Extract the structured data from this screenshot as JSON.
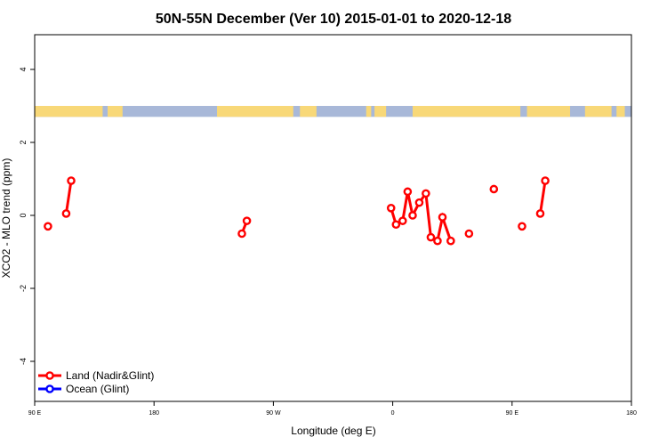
{
  "chart_data": {
    "type": "line",
    "title": "50N-55N December (Ver 10)   2015-01-01 to 2020-12-18",
    "xlabel": "Longitude (deg E)",
    "ylabel": "XCO2 - MLO trend (ppm)",
    "xlim": [
      90,
      450
    ],
    "ylim": [
      -5,
      5
    ],
    "x_ticks": [
      {
        "value": 90,
        "label": "90 E"
      },
      {
        "value": 162,
        "label": "180"
      },
      {
        "value": 234,
        "label": "90 W"
      },
      {
        "value": 306,
        "label": "0"
      },
      {
        "value": 378,
        "label": "90 E"
      },
      {
        "value": 450,
        "label": "180"
      }
    ],
    "y_ticks": [
      {
        "value": -4,
        "label": "-4"
      },
      {
        "value": -2,
        "label": "-2"
      },
      {
        "value": 0,
        "label": "0"
      },
      {
        "value": 2,
        "label": "2"
      },
      {
        "value": 4,
        "label": "4"
      }
    ],
    "grid": false,
    "legend_position": "bottom-left",
    "land_ocean_strip": {
      "y_range": [
        2.7,
        3.0
      ],
      "land_color": "#f8d878",
      "ocean_color": "#a8b8d8",
      "land_ranges": [
        [
          90,
          131
        ],
        [
          134,
          143
        ],
        [
          200,
          246
        ],
        [
          250,
          260
        ],
        [
          290,
          293
        ],
        [
          295,
          302
        ],
        [
          318,
          383
        ],
        [
          387,
          413
        ],
        [
          422,
          438
        ],
        [
          441,
          446
        ]
      ]
    },
    "series": [
      {
        "name": "Land (Nadir&Glint)",
        "color": "#ff0000",
        "segments": [
          [
            {
              "x": 98,
              "y": -0.3
            }
          ],
          [
            {
              "x": 109,
              "y": 0.05
            },
            {
              "x": 112,
              "y": 0.95
            }
          ],
          [
            {
              "x": 215,
              "y": -0.5
            },
            {
              "x": 218,
              "y": -0.15
            }
          ],
          [
            {
              "x": 305,
              "y": 0.2
            },
            {
              "x": 308,
              "y": -0.25
            },
            {
              "x": 312,
              "y": -0.15
            },
            {
              "x": 315,
              "y": 0.65
            },
            {
              "x": 318,
              "y": 0.0
            },
            {
              "x": 322,
              "y": 0.35
            },
            {
              "x": 326,
              "y": 0.6
            },
            {
              "x": 329,
              "y": -0.6
            },
            {
              "x": 333,
              "y": -0.7
            },
            {
              "x": 336,
              "y": -0.05
            },
            {
              "x": 341,
              "y": -0.7
            }
          ],
          [
            {
              "x": 352,
              "y": -0.5
            }
          ],
          [
            {
              "x": 367,
              "y": 0.72
            }
          ],
          [
            {
              "x": 384,
              "y": -0.3
            }
          ],
          [
            {
              "x": 395,
              "y": 0.05
            },
            {
              "x": 398,
              "y": 0.95
            }
          ]
        ]
      },
      {
        "name": "Ocean (Glint)",
        "color": "#0000ff",
        "segments": []
      }
    ]
  }
}
